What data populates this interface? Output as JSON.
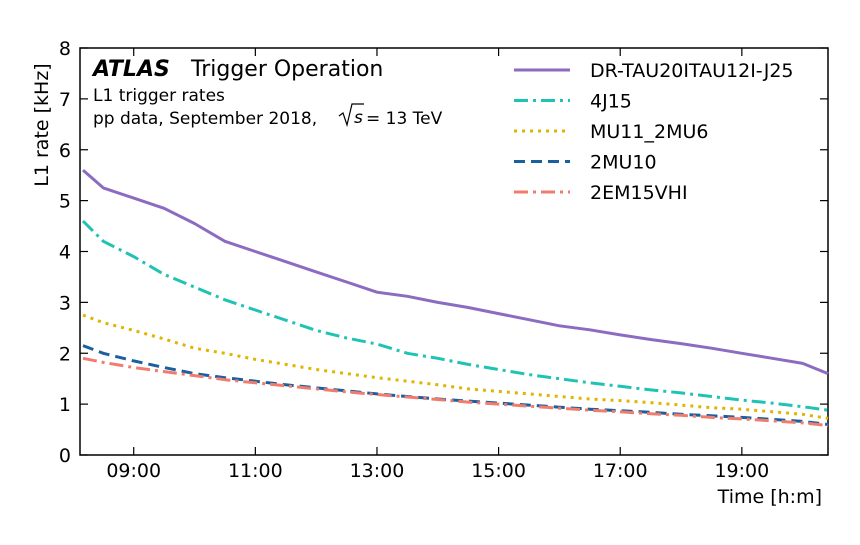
{
  "chart_data": {
    "type": "line",
    "title": "",
    "xlabel": "Time [h:m]",
    "ylabel": "L1 rate [kHz]",
    "xlim": [
      "08:07",
      "20:25"
    ],
    "ylim": [
      0,
      8
    ],
    "x_ticks": [
      "09:00",
      "11:00",
      "13:00",
      "15:00",
      "17:00",
      "19:00"
    ],
    "y_ticks": [
      "0",
      "1",
      "2",
      "3",
      "4",
      "5",
      "6",
      "7",
      "8"
    ],
    "grid": false,
    "legend_position": "top-right",
    "annotations": {
      "experiment": "ATLAS",
      "subtitle": "Trigger Operation",
      "line1": "L1 trigger rates",
      "line2_prefix": "pp data, September 2018, ",
      "sqrt_s": "s",
      "line2_value": "= 13 TeV"
    },
    "x": [
      "08:10",
      "08:30",
      "09:00",
      "09:30",
      "10:00",
      "10:30",
      "11:00",
      "11:30",
      "12:00",
      "12:30",
      "13:00",
      "13:30",
      "14:00",
      "14:30",
      "15:00",
      "15:30",
      "16:00",
      "16:30",
      "17:00",
      "17:30",
      "18:00",
      "18:30",
      "19:00",
      "19:30",
      "20:00",
      "20:25"
    ],
    "series": [
      {
        "name": "DR-TAU20ITAU12I-J25",
        "color": "#8c6bc0",
        "dash": "solid",
        "values": [
          5.6,
          5.25,
          5.05,
          4.85,
          4.55,
          4.2,
          4.0,
          3.8,
          3.6,
          3.4,
          3.2,
          3.12,
          3.0,
          2.9,
          2.78,
          2.66,
          2.54,
          2.46,
          2.36,
          2.27,
          2.19,
          2.1,
          2.0,
          1.9,
          1.8,
          1.6
        ]
      },
      {
        "name": "4J15",
        "color": "#1fc3b4",
        "dash": "dashdot",
        "values": [
          4.6,
          4.2,
          3.9,
          3.55,
          3.3,
          3.05,
          2.85,
          2.65,
          2.45,
          2.3,
          2.18,
          2.0,
          1.9,
          1.78,
          1.68,
          1.58,
          1.5,
          1.42,
          1.35,
          1.28,
          1.22,
          1.15,
          1.08,
          1.02,
          0.95,
          0.88
        ]
      },
      {
        "name": "MU11_2MU6",
        "color": "#e0b400",
        "dash": "dotted",
        "values": [
          2.75,
          2.6,
          2.45,
          2.28,
          2.1,
          2.0,
          1.88,
          1.78,
          1.68,
          1.6,
          1.52,
          1.45,
          1.38,
          1.3,
          1.25,
          1.2,
          1.15,
          1.1,
          1.07,
          1.03,
          0.98,
          0.93,
          0.9,
          0.85,
          0.8,
          0.72
        ]
      },
      {
        "name": "2MU10",
        "color": "#1a5f9e",
        "dash": "dashed",
        "values": [
          2.15,
          2.0,
          1.85,
          1.72,
          1.6,
          1.52,
          1.45,
          1.38,
          1.32,
          1.26,
          1.2,
          1.15,
          1.1,
          1.06,
          1.02,
          0.98,
          0.94,
          0.9,
          0.87,
          0.84,
          0.8,
          0.77,
          0.74,
          0.7,
          0.66,
          0.6
        ]
      },
      {
        "name": "2EM15VHI",
        "color": "#f07c6e",
        "dash": "dashdot",
        "values": [
          1.9,
          1.82,
          1.72,
          1.64,
          1.56,
          1.48,
          1.42,
          1.36,
          1.3,
          1.24,
          1.19,
          1.14,
          1.09,
          1.04,
          1.0,
          0.96,
          0.92,
          0.88,
          0.85,
          0.81,
          0.78,
          0.74,
          0.71,
          0.67,
          0.63,
          0.58
        ]
      }
    ]
  }
}
